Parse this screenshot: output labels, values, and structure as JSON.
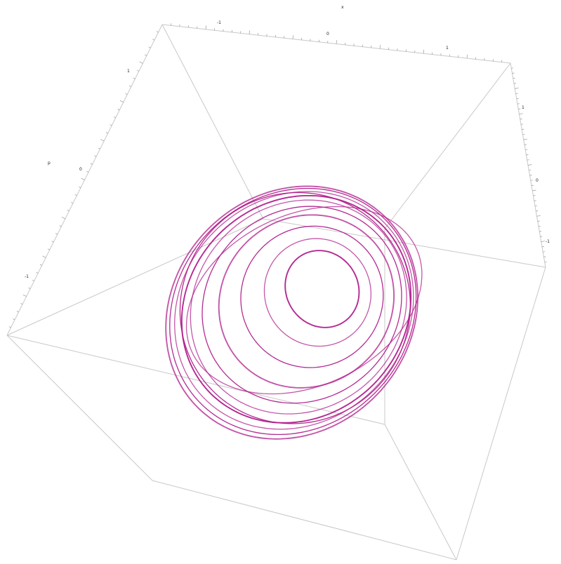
{
  "chart_data": {
    "type": "line",
    "title": "",
    "series_color": "#b01f8c",
    "axes": {
      "x": {
        "label": "x",
        "ticks": [
          "-1",
          "0",
          "1"
        ]
      },
      "p": {
        "label": "p",
        "ticks": [
          "1",
          "0",
          "-1"
        ]
      },
      "z": {
        "ticks": [
          "1",
          "0",
          "-1"
        ]
      }
    },
    "series": [
      {
        "orbits": [
          {
            "cx": 0.18,
            "cy": -0.05,
            "rx": 0.32,
            "ry": 0.45,
            "rot": -32
          },
          {
            "cx": 0.14,
            "cy": -0.02,
            "rx": 0.47,
            "ry": 0.62,
            "rot": -35
          },
          {
            "cx": 0.09,
            "cy": 0.02,
            "rx": 0.64,
            "ry": 0.8,
            "rot": -38
          },
          {
            "cx": 0.04,
            "cy": 0.06,
            "rx": 0.8,
            "ry": 0.96,
            "rot": -40
          },
          {
            "cx": 0.0,
            "cy": 0.09,
            "rx": 0.92,
            "ry": 1.08,
            "rot": -41
          },
          {
            "cx": -0.03,
            "cy": 0.11,
            "rx": 1.0,
            "ry": 1.17,
            "rot": -42
          },
          {
            "cx": -0.05,
            "cy": 0.13,
            "rx": 1.07,
            "ry": 1.23,
            "rot": -43
          },
          {
            "cx": -0.07,
            "cy": 0.14,
            "rx": 1.12,
            "ry": 1.28,
            "rot": -44
          },
          {
            "cx": -0.08,
            "cy": 0.15,
            "rx": 1.16,
            "ry": 1.32,
            "rot": -45
          },
          {
            "cx": -0.09,
            "cy": 0.16,
            "rx": 1.19,
            "ry": 1.35,
            "rot": -46
          },
          {
            "cx": -0.06,
            "cy": 0.12,
            "rx": 1.04,
            "ry": 1.3,
            "rot": -50
          },
          {
            "cx": 0.02,
            "cy": 0.05,
            "rx": 1.1,
            "ry": 0.98,
            "rot": -25
          }
        ]
      }
    ]
  }
}
